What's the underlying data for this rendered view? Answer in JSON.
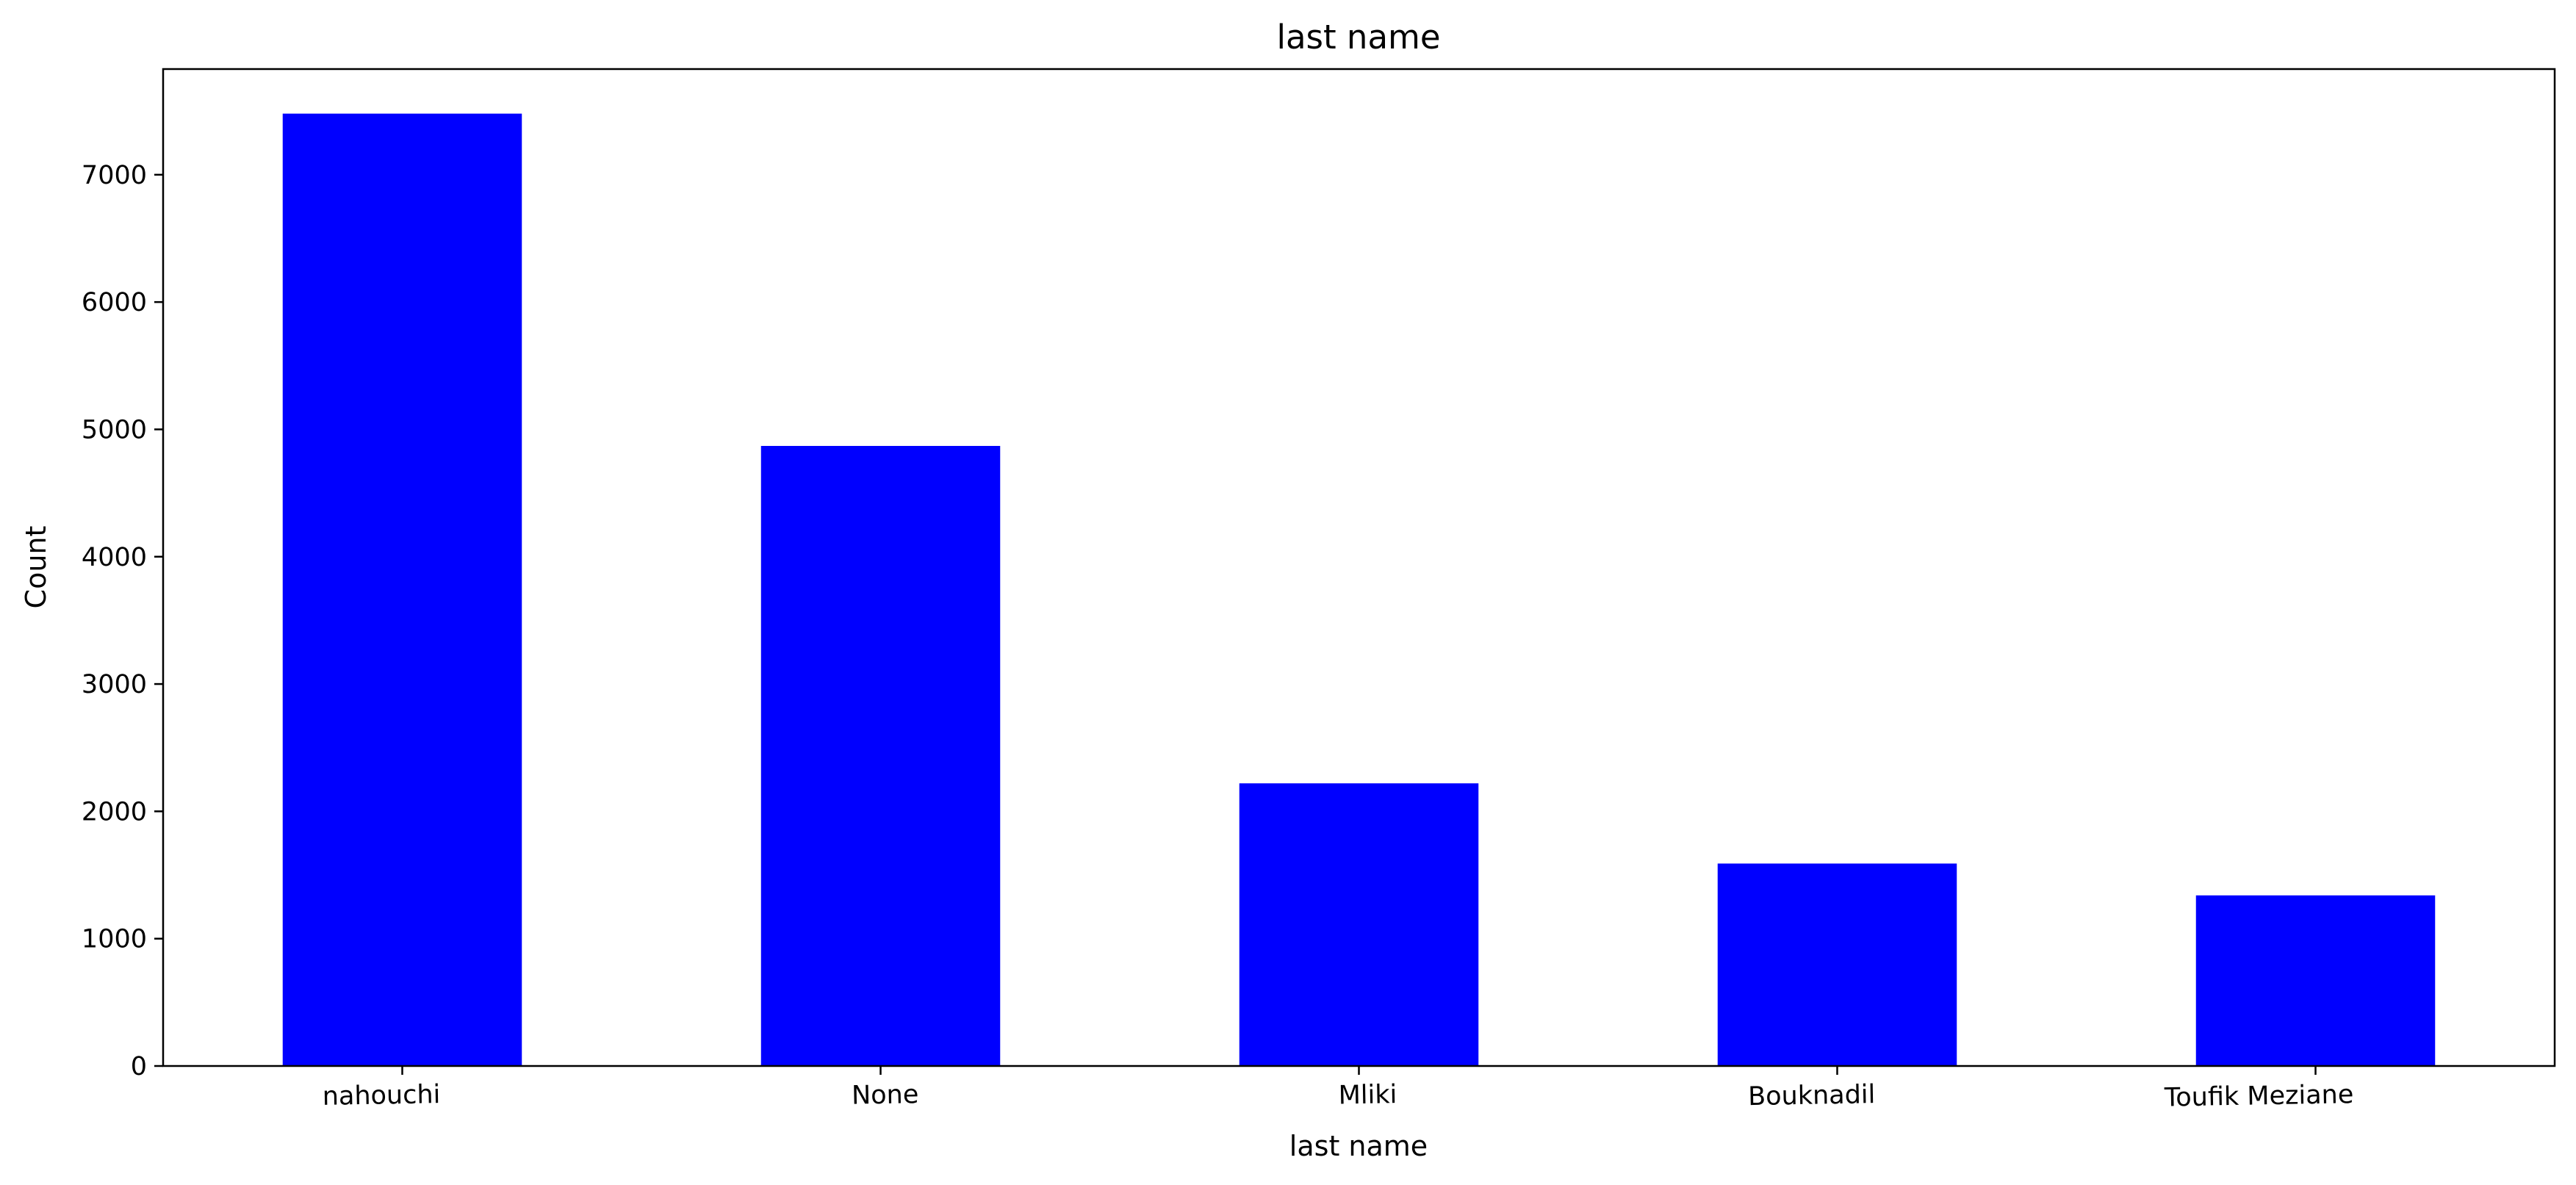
{
  "chart_data": {
    "type": "bar",
    "title": "last name",
    "xlabel": "last name",
    "ylabel": "Count",
    "categories": [
      "nahouchi",
      "None",
      "Mliki",
      "Bouknadil",
      "Toufik Meziane"
    ],
    "values": [
      7480,
      4870,
      2220,
      1590,
      1340
    ],
    "ylim": [
      0,
      7830
    ],
    "yticks": [
      0,
      1000,
      2000,
      3000,
      4000,
      5000,
      6000,
      7000
    ],
    "ytick_labels": [
      "0",
      "1000",
      "2000",
      "3000",
      "4000",
      "5000",
      "6000",
      "7000"
    ],
    "bar_color": "#0000ff",
    "grid": false,
    "legend": false
  }
}
